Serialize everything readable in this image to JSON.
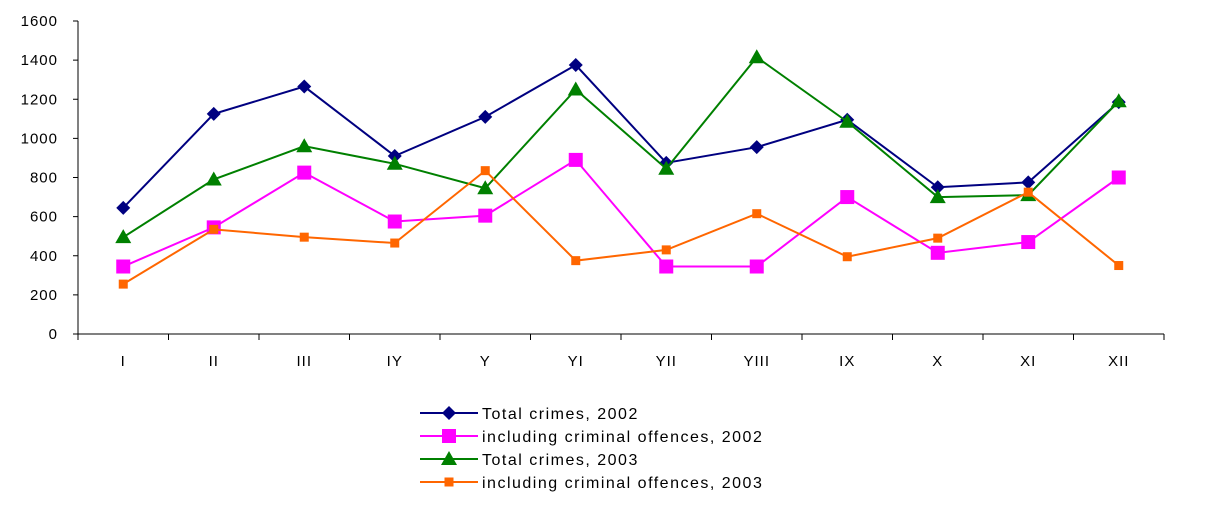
{
  "chart_data": {
    "type": "line",
    "title": "",
    "xlabel": "",
    "ylabel": "",
    "categories": [
      "I",
      "II",
      "III",
      "IY",
      "Y",
      "YI",
      "YII",
      "YIII",
      "IX",
      "X",
      "XI",
      "XII"
    ],
    "ylim": [
      0,
      1600
    ],
    "yticks": [
      "0",
      "200",
      "400",
      "600",
      "800",
      "1000",
      "1200",
      "1400",
      "1600"
    ],
    "grid": false,
    "legend_position": "bottom",
    "series": [
      {
        "name": "Total crimes, 2002",
        "color": "#000080",
        "marker": "diamond",
        "values": [
          645,
          1125,
          1265,
          910,
          1110,
          1375,
          875,
          955,
          1095,
          750,
          775,
          1185
        ]
      },
      {
        "name": "including criminal offences, 2002",
        "color": "#ff00ff",
        "marker": "square",
        "values": [
          345,
          545,
          825,
          575,
          605,
          890,
          345,
          345,
          700,
          415,
          470,
          800
        ]
      },
      {
        "name": "Total crimes, 2003",
        "color": "#008000",
        "marker": "triangle",
        "values": [
          495,
          790,
          960,
          870,
          745,
          1250,
          845,
          1415,
          1085,
          700,
          710,
          1190
        ]
      },
      {
        "name": "including criminal offences, 2003",
        "color": "#ff6600",
        "marker": "small-square",
        "values": [
          255,
          535,
          495,
          465,
          835,
          375,
          430,
          615,
          395,
          490,
          725,
          350
        ]
      }
    ]
  }
}
